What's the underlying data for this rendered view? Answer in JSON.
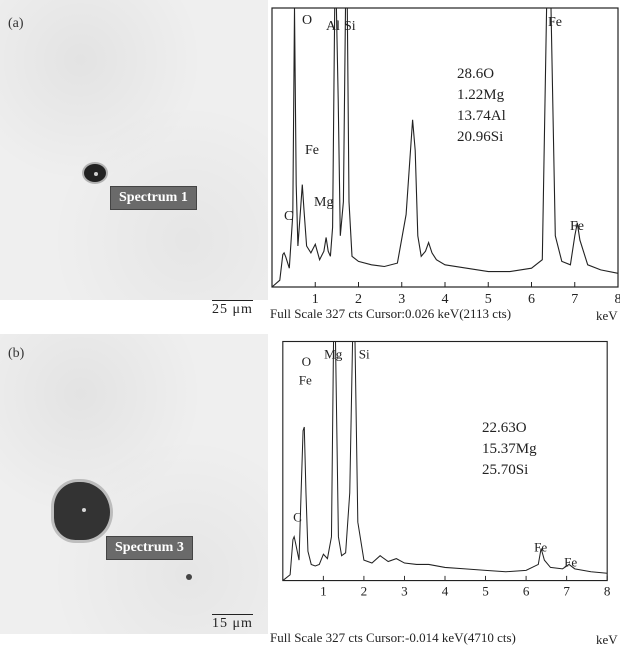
{
  "panels": [
    {
      "label": "(a)",
      "spectrum_tag": "Spectrum 1",
      "scale_bar": "25 μm",
      "footer": "Full Scale 327 cts Cursor:0.026 keV(2113 cts)",
      "unit": "keV",
      "composition": [
        "28.6O",
        "1.22Mg",
        "13.74Al",
        "20.96Si"
      ]
    },
    {
      "label": "(b)",
      "spectrum_tag": "Spectrum 3",
      "scale_bar": "15 μm",
      "footer": "Full Scale 327 cts Cursor:-0.014 keV(4710 cts)",
      "unit": "keV",
      "composition": [
        "22.63O",
        "15.37Mg",
        "25.70Si"
      ]
    }
  ],
  "chart_data": [
    {
      "type": "line",
      "xlim": [
        0,
        8
      ],
      "ylim": [
        0,
        327
      ],
      "x_ticks": [
        "1",
        "2",
        "3",
        "4",
        "5",
        "6",
        "7",
        "8"
      ],
      "x": [
        0.0,
        0.18,
        0.25,
        0.28,
        0.32,
        0.4,
        0.48,
        0.52,
        0.56,
        0.6,
        0.66,
        0.7,
        0.74,
        0.8,
        0.9,
        1.0,
        1.1,
        1.2,
        1.25,
        1.3,
        1.35,
        1.4,
        1.45,
        1.49,
        1.53,
        1.58,
        1.65,
        1.7,
        1.74,
        1.78,
        1.85,
        2.0,
        2.3,
        2.6,
        2.9,
        3.1,
        3.25,
        3.31,
        3.37,
        3.45,
        3.55,
        3.62,
        3.7,
        3.8,
        4.0,
        4.5,
        5.0,
        5.5,
        6.0,
        6.25,
        6.35,
        6.4,
        6.45,
        6.55,
        6.7,
        6.9,
        7.0,
        7.06,
        7.12,
        7.3,
        7.6,
        8.0
      ],
      "values": [
        0,
        8,
        38,
        40,
        35,
        22,
        85,
        327,
        120,
        48,
        90,
        120,
        90,
        48,
        40,
        50,
        32,
        42,
        58,
        42,
        36,
        70,
        327,
        327,
        220,
        60,
        100,
        327,
        327,
        100,
        36,
        30,
        26,
        24,
        28,
        85,
        196,
        160,
        60,
        36,
        42,
        52,
        40,
        32,
        26,
        22,
        18,
        18,
        22,
        32,
        327,
        327,
        327,
        60,
        30,
        26,
        60,
        75,
        55,
        26,
        20,
        16
      ]
    },
    {
      "type": "line",
      "xlim": [
        0,
        8
      ],
      "ylim": [
        0,
        327
      ],
      "x_ticks": [
        "1",
        "2",
        "3",
        "4",
        "5",
        "6",
        "7",
        "8"
      ],
      "x": [
        0.0,
        0.18,
        0.25,
        0.28,
        0.32,
        0.4,
        0.45,
        0.5,
        0.53,
        0.57,
        0.62,
        0.7,
        0.8,
        0.9,
        1.0,
        1.1,
        1.2,
        1.25,
        1.3,
        1.37,
        1.45,
        1.55,
        1.65,
        1.72,
        1.78,
        1.85,
        2.0,
        2.2,
        2.4,
        2.6,
        2.8,
        3.0,
        3.3,
        3.6,
        4.0,
        4.5,
        5.0,
        5.5,
        6.0,
        6.3,
        6.37,
        6.45,
        6.6,
        6.9,
        7.06,
        7.2,
        7.6,
        8.0
      ],
      "values": [
        0,
        8,
        56,
        60,
        50,
        28,
        120,
        205,
        210,
        120,
        40,
        22,
        20,
        22,
        36,
        30,
        60,
        327,
        327,
        60,
        34,
        38,
        120,
        327,
        327,
        80,
        28,
        24,
        34,
        26,
        30,
        24,
        22,
        22,
        18,
        16,
        14,
        12,
        14,
        22,
        44,
        28,
        18,
        16,
        22,
        16,
        12,
        10
      ]
    }
  ],
  "peak_labels": [
    [
      "O",
      "Al",
      "Si",
      "Fe",
      "Fe",
      "Mg",
      "C",
      "Fe"
    ],
    [
      "O",
      "Fe",
      "Mg",
      "Si",
      "C",
      "Fe",
      "Fe"
    ]
  ]
}
